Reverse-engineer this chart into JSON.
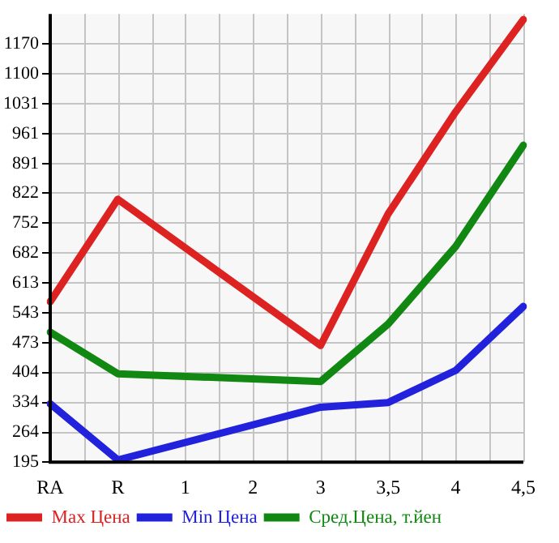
{
  "chart_data": {
    "type": "line",
    "categories": [
      "RA",
      "R",
      "1",
      "2",
      "3",
      "3,5",
      "4",
      "4,5"
    ],
    "series": [
      {
        "name": "Max Цена",
        "color": "#dd2222",
        "values": [
          569,
          808,
          null,
          null,
          467,
          774,
          1012,
          1227
        ]
      },
      {
        "name": "Min Цена",
        "color": "#2222dd",
        "values": [
          331,
          200,
          null,
          null,
          323,
          334,
          409,
          558
        ]
      },
      {
        "name": "Сред.Цена, т.йен",
        "color": "#118811",
        "values": [
          498,
          401,
          null,
          null,
          383,
          517,
          698,
          934
        ]
      }
    ],
    "ylim": [
      195,
      1240
    ],
    "yticks": [
      195,
      264,
      334,
      404,
      473,
      543,
      613,
      682,
      752,
      822,
      891,
      961,
      1031,
      1100,
      1170
    ],
    "grid": true,
    "legend": "bottom",
    "marker": "none",
    "line_style": "solid"
  }
}
